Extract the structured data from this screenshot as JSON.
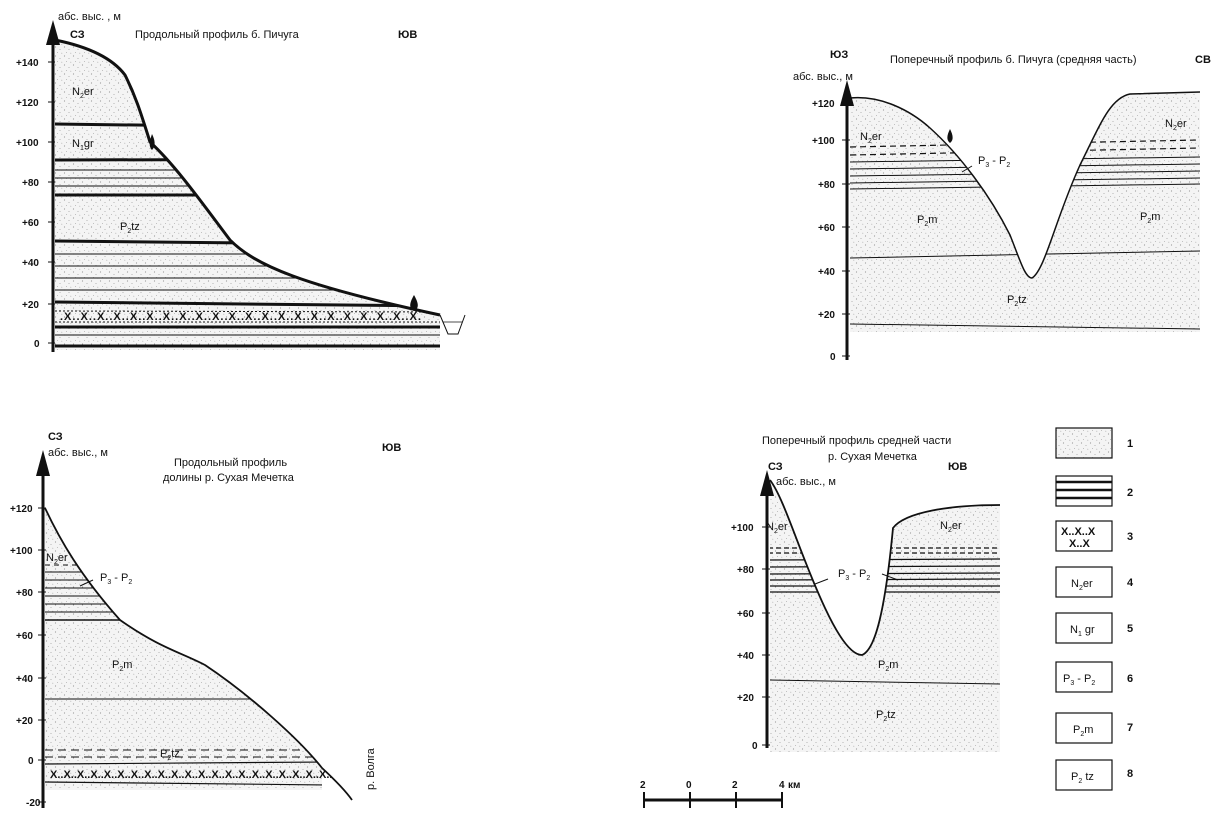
{
  "panels": {
    "p1": {
      "ylabel": "абс. выс. , м",
      "dir_left": "СЗ",
      "dir_right": "ЮВ",
      "title": "Продольный профиль б. Пичуга",
      "ticks": [
        "+140",
        "+120",
        "+100",
        "+80",
        "+60",
        "+40",
        "+20",
        "0"
      ],
      "labels": {
        "n2er": "er",
        "n1gr": "gr",
        "p2tz": "tz"
      }
    },
    "p2": {
      "dir_left": "ЮЗ",
      "dir_right": "СВ",
      "title": "Поперечный профиль б. Пичуга (средняя часть)",
      "ylabel": "абс. выс., м",
      "ticks": [
        "+120",
        "+100",
        "+80",
        "+60",
        "+40",
        "+20",
        "0"
      ],
      "labels": {
        "n2er_left": "er",
        "n2er_right": "er",
        "p3p2": "P",
        "p2m_left": "m",
        "p2m_right": "m",
        "p2tz": "tz"
      }
    },
    "p3": {
      "dir_left": "СЗ",
      "dir_right": "ЮВ",
      "ylabel": "абс. выс., м",
      "title_line1": "Продольный профиль",
      "title_line2": "долины р. Сухая Мечетка",
      "ticks": [
        "+120",
        "+100",
        "+80",
        "+60",
        "+40",
        "+20",
        "0",
        "-20"
      ],
      "labels": {
        "n2er": "er",
        "p3p2": "P",
        "p2m": "m",
        "p2tz": "tz"
      },
      "river": "р. Волга"
    },
    "p4": {
      "title_line1": "Поперечный профиль средней части",
      "title_line2": "р. Сухая Мечетка",
      "dir_left": "СЗ",
      "dir_right": "ЮВ",
      "ylabel": "абс. выс., м",
      "ticks": [
        "+100",
        "+80",
        "+60",
        "+40",
        "+20",
        "0"
      ],
      "labels": {
        "n2er_left": "er",
        "n2er_right": "er",
        "p3p2": "P",
        "p2m": "m",
        "p2tz": "tz"
      }
    }
  },
  "scale_bar": {
    "labels": [
      "2",
      "0",
      "2",
      "4"
    ],
    "unit": "км"
  },
  "legend": [
    {
      "num": "1",
      "pattern": "sand"
    },
    {
      "num": "2",
      "pattern": "lines"
    },
    {
      "num": "3",
      "pattern": "crosses"
    },
    {
      "num": "4",
      "text": "er"
    },
    {
      "num": "5",
      "text": "gr"
    },
    {
      "num": "6",
      "text": "P"
    },
    {
      "num": "7",
      "text": "m"
    },
    {
      "num": "8",
      "text": "tz"
    }
  ],
  "colors": {
    "ink": "#111111",
    "stipple": "#bdbdbd",
    "background": "#ffffff"
  }
}
